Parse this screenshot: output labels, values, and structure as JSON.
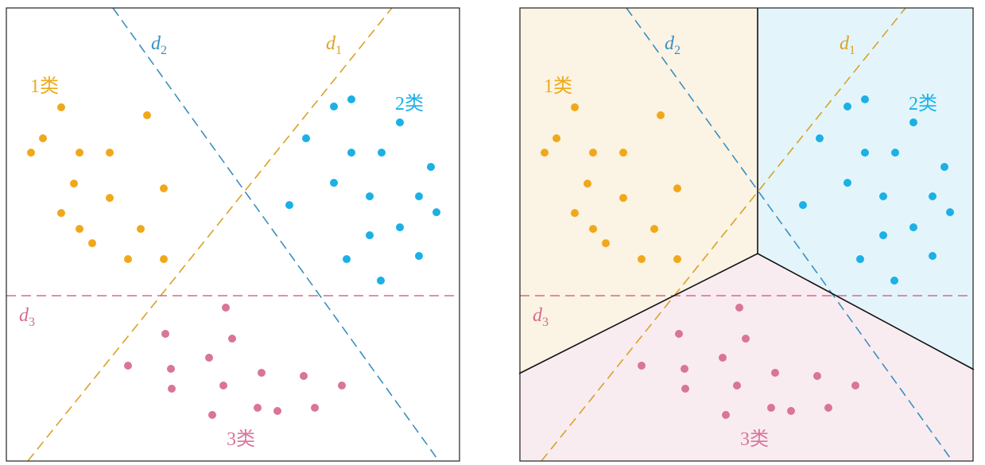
{
  "panels": [
    {
      "lines": [
        {
          "symbol": "d",
          "subscript": "1"
        },
        {
          "symbol": "d",
          "subscript": "2"
        },
        {
          "symbol": "d",
          "subscript": "3"
        }
      ],
      "classes": [
        "1类",
        "2类",
        "3类"
      ]
    },
    {
      "lines": [
        {
          "symbol": "d",
          "subscript": "1"
        },
        {
          "symbol": "d",
          "subscript": "2"
        },
        {
          "symbol": "d",
          "subscript": "3"
        }
      ],
      "classes": [
        "1类",
        "2类",
        "3类"
      ]
    }
  ]
}
